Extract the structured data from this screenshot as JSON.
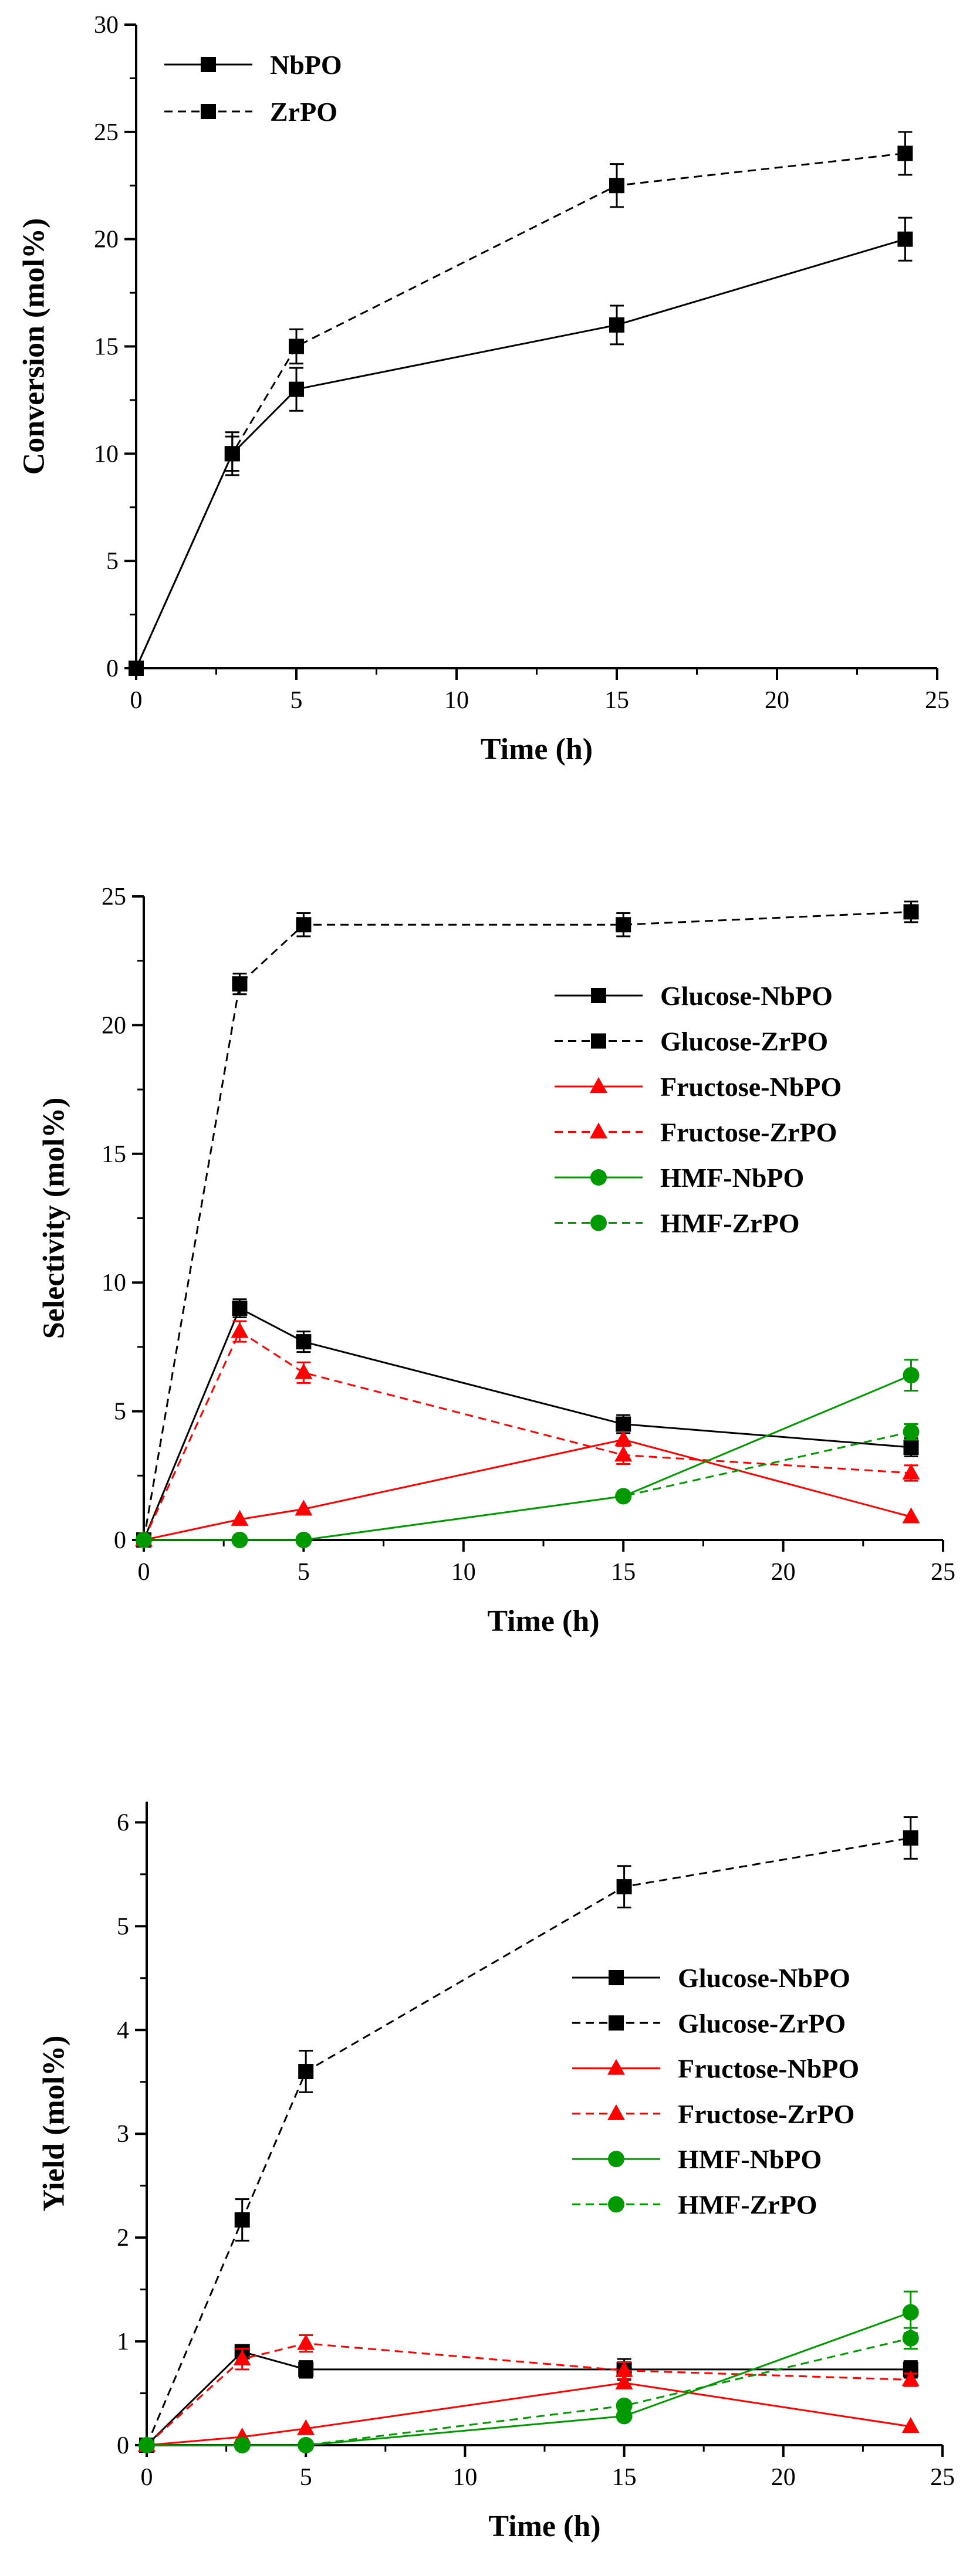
{
  "colors": {
    "black": "#000000",
    "red": "#ff0000",
    "green": "#009900"
  },
  "chart_data": [
    {
      "type": "line",
      "xlabel": "Time (h)",
      "ylabel": "Conversion (mol%)",
      "xlim": [
        0,
        25
      ],
      "ylim": [
        0,
        30
      ],
      "xticks": [
        "0",
        "5",
        "10",
        "15",
        "20",
        "25"
      ],
      "yticks": [
        "0",
        "5",
        "10",
        "15",
        "20",
        "25",
        "30"
      ],
      "legend_position": "top-left",
      "series": [
        {
          "name": "NbPO",
          "color": "black",
          "dash": "solid",
          "marker": "square",
          "x": [
            0,
            3,
            5,
            15,
            24
          ],
          "y": [
            0,
            10,
            13,
            16,
            20
          ],
          "err": [
            0,
            1,
            1,
            0.9,
            1
          ]
        },
        {
          "name": "ZrPO",
          "color": "black",
          "dash": "dashed",
          "marker": "square",
          "x": [
            0,
            3,
            5,
            15,
            24
          ],
          "y": [
            0,
            10,
            15,
            22.5,
            24
          ],
          "err": [
            0,
            0.8,
            0.8,
            1,
            1
          ]
        }
      ]
    },
    {
      "type": "line",
      "xlabel": "Time (h)",
      "ylabel": "Selectivity (mol%)",
      "xlim": [
        0,
        25
      ],
      "ylim": [
        0,
        25
      ],
      "xticks": [
        "0",
        "5",
        "10",
        "15",
        "20",
        "25"
      ],
      "yticks": [
        "0",
        "5",
        "10",
        "15",
        "20",
        "25"
      ],
      "legend_position": "center-right",
      "series": [
        {
          "name": "Glucose-NbPO",
          "color": "black",
          "dash": "solid",
          "marker": "square",
          "x": [
            0,
            3,
            5,
            15,
            24
          ],
          "y": [
            0,
            9.0,
            7.7,
            4.5,
            3.6
          ],
          "err": [
            0,
            0.35,
            0.4,
            0.35,
            0.35
          ]
        },
        {
          "name": "Glucose-ZrPO",
          "color": "black",
          "dash": "dashed",
          "marker": "square",
          "x": [
            0,
            3,
            5,
            15,
            24
          ],
          "y": [
            0,
            21.6,
            23.9,
            23.9,
            24.4
          ],
          "err": [
            0,
            0.4,
            0.45,
            0.45,
            0.4
          ]
        },
        {
          "name": "Fructose-NbPO",
          "color": "red",
          "dash": "solid",
          "marker": "triangle",
          "x": [
            0,
            3,
            5,
            15,
            24
          ],
          "y": [
            0,
            0.8,
            1.2,
            3.9,
            0.9
          ],
          "err": [
            0,
            0,
            0,
            0,
            0
          ]
        },
        {
          "name": "Fructose-ZrPO",
          "color": "red",
          "dash": "dashed",
          "marker": "triangle",
          "x": [
            0,
            3,
            5,
            15,
            24
          ],
          "y": [
            0,
            8.1,
            6.5,
            3.3,
            2.6
          ],
          "err": [
            0,
            0.4,
            0.4,
            0.35,
            0.3
          ]
        },
        {
          "name": "HMF-NbPO",
          "color": "green",
          "dash": "solid",
          "marker": "circle",
          "x": [
            0,
            3,
            5,
            15,
            24
          ],
          "y": [
            0,
            0,
            0,
            1.7,
            6.4
          ],
          "err": [
            0,
            0,
            0,
            0,
            0.6
          ]
        },
        {
          "name": "HMF-ZrPO",
          "color": "green",
          "dash": "dashed",
          "marker": "circle",
          "x": [
            0,
            3,
            5,
            15,
            24
          ],
          "y": [
            0,
            0,
            0,
            1.7,
            4.2
          ],
          "err": [
            0,
            0,
            0,
            0,
            0.3
          ]
        }
      ]
    },
    {
      "type": "line",
      "xlabel": "Time (h)",
      "ylabel": "Yield (mol%)",
      "xlim": [
        0,
        25
      ],
      "ylim": [
        0,
        6.2
      ],
      "xticks": [
        "0",
        "5",
        "10",
        "15",
        "20",
        "25"
      ],
      "yticks": [
        "0",
        "1",
        "2",
        "3",
        "4",
        "5",
        "6"
      ],
      "legend_position": "center-right",
      "series": [
        {
          "name": "Glucose-NbPO",
          "color": "black",
          "dash": "solid",
          "marker": "square",
          "x": [
            0,
            3,
            5,
            15,
            24
          ],
          "y": [
            0,
            0.9,
            0.73,
            0.73,
            0.73
          ],
          "err": [
            0,
            0.05,
            0.08,
            0.1,
            0.08
          ]
        },
        {
          "name": "Glucose-ZrPO",
          "color": "black",
          "dash": "dashed",
          "marker": "square",
          "x": [
            0,
            3,
            5,
            15,
            24
          ],
          "y": [
            0,
            2.17,
            3.6,
            5.38,
            5.85
          ],
          "err": [
            0,
            0.2,
            0.2,
            0.2,
            0.2
          ]
        },
        {
          "name": "Fructose-NbPO",
          "color": "red",
          "dash": "solid",
          "marker": "triangle",
          "x": [
            0,
            3,
            5,
            15,
            24
          ],
          "y": [
            0,
            0.08,
            0.16,
            0.6,
            0.18
          ],
          "err": [
            0,
            0,
            0,
            0,
            0
          ]
        },
        {
          "name": "Fructose-ZrPO",
          "color": "red",
          "dash": "dashed",
          "marker": "triangle",
          "x": [
            0,
            3,
            5,
            15,
            24
          ],
          "y": [
            0,
            0.83,
            0.98,
            0.72,
            0.63
          ],
          "err": [
            0,
            0.1,
            0.08,
            0.08,
            0.06
          ]
        },
        {
          "name": "HMF-NbPO",
          "color": "green",
          "dash": "solid",
          "marker": "circle",
          "x": [
            0,
            3,
            5,
            15,
            24
          ],
          "y": [
            0,
            0,
            0,
            0.28,
            1.28
          ],
          "err": [
            0,
            0,
            0,
            0,
            0.2
          ]
        },
        {
          "name": "HMF-ZrPO",
          "color": "green",
          "dash": "dashed",
          "marker": "circle",
          "x": [
            0,
            3,
            5,
            15,
            24
          ],
          "y": [
            0,
            0,
            0,
            0.38,
            1.03
          ],
          "err": [
            0,
            0,
            0,
            0,
            0.1
          ]
        }
      ]
    }
  ]
}
